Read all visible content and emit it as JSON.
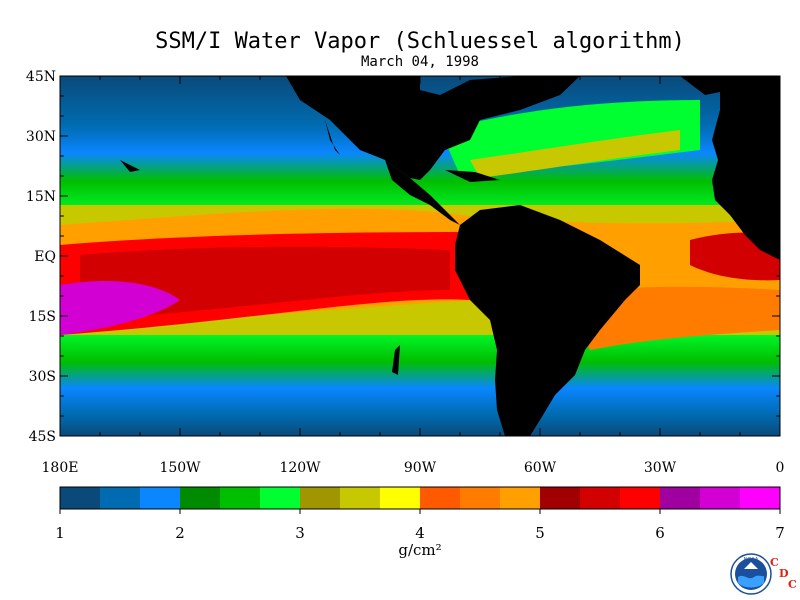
{
  "title": "SSM/I Water Vapor (Schluessel algorithm)",
  "date": "March 04, 1998",
  "lat_labels": [
    "45N",
    "30N",
    "15N",
    "EQ",
    "15S",
    "30S",
    "45S"
  ],
  "lon_labels": [
    "180E",
    "150W",
    "120W",
    "90W",
    "60W",
    "30W",
    "0"
  ],
  "map_extent": {
    "lon_min": -180,
    "lon_max": 0,
    "lat_min": -45,
    "lat_max": 45
  },
  "colorbar": {
    "min": 1,
    "max": 7,
    "labels": [
      "1",
      "2",
      "3",
      "4",
      "5",
      "6",
      "7"
    ],
    "units": "g/cm²",
    "colors": [
      "#0a4a7a",
      "#006bb0",
      "#0a86ff",
      "#008a00",
      "#00be00",
      "#00ff30",
      "#a09600",
      "#c8c800",
      "#ffff00",
      "#ff5a00",
      "#ff7c00",
      "#ffa000",
      "#a00000",
      "#d20000",
      "#ff0000",
      "#a000a0",
      "#d200d2",
      "#ff00ff"
    ]
  },
  "logo": {
    "text": "NOAA",
    "cdc": [
      "C",
      "D",
      "C"
    ],
    "icon": "noaa-logo-icon"
  },
  "land_color": "#000000"
}
